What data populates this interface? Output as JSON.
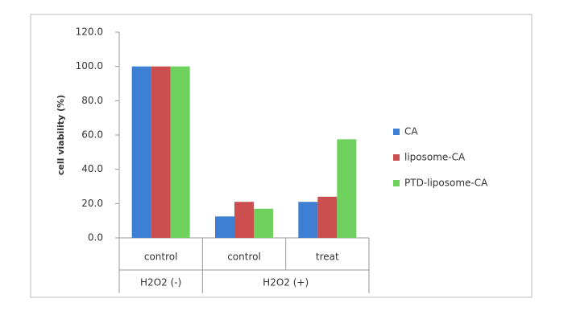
{
  "chart_data": {
    "type": "bar",
    "y_label": "cell viability (%)",
    "groups": [
      {
        "label": "H2O2 (-)",
        "categories": [
          "control"
        ]
      },
      {
        "label": "H2O2 (+)",
        "categories": [
          "control",
          "treat"
        ]
      }
    ],
    "series": [
      {
        "name": "CA",
        "color": "#3d7fd2",
        "values": [
          100,
          12.5,
          21
        ]
      },
      {
        "name": "liposome-CA",
        "color": "#cc4f50",
        "values": [
          100,
          21,
          24
        ]
      },
      {
        "name": "PTD-liposome-CA",
        "color": "#6fd15d",
        "values": [
          100,
          17,
          57.5
        ]
      }
    ],
    "ylim": [
      0,
      120
    ],
    "yticks": [
      {
        "value": 0,
        "label": "0.0"
      },
      {
        "value": 20,
        "label": "20.0"
      },
      {
        "value": 40,
        "label": "40.0"
      },
      {
        "value": 60,
        "label": "60.0"
      },
      {
        "value": 80,
        "label": "80.0"
      },
      {
        "value": 100,
        "label": "100.0"
      },
      {
        "value": 120,
        "label": "120.0"
      }
    ],
    "grid": false,
    "legend": "right"
  }
}
